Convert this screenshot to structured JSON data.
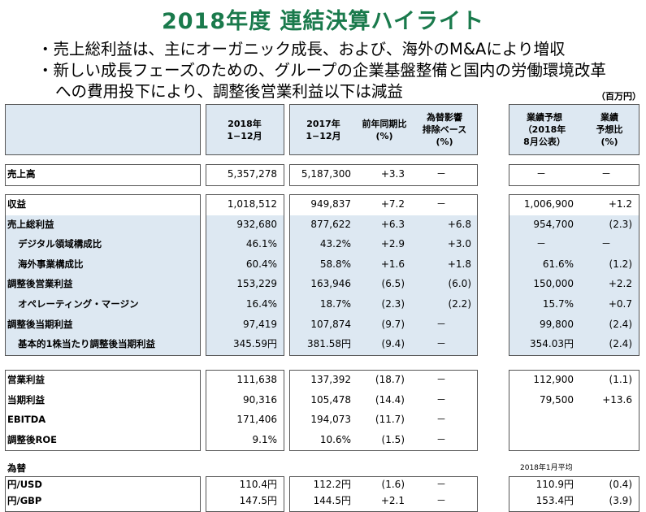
{
  "title": "2018年度 連結決算ハイライト",
  "bullets": [
    "・売上総利益は、主にオーガニック成長、および、海外のM&Aにより増収",
    "・新しい成長フェーズのための、グループの企業基盤整備と国内の労働環境改革",
    "への費用投下により、調整後営業利益以下は減益"
  ],
  "unit": "（百万円）",
  "headers": {
    "y2018": [
      "2018年",
      "1−12月"
    ],
    "y2017": [
      "2017年",
      "1−12月"
    ],
    "yoy": [
      "前年同期比",
      "(%)"
    ],
    "fx": [
      "為替影響",
      "排除ベース",
      "(%)"
    ],
    "forecast": [
      "業績予想",
      "（2018年",
      "8月公表）"
    ],
    "ratio": [
      "業績",
      "予想比",
      "(%)"
    ]
  },
  "groups": [
    {
      "rows": [
        {
          "label": "売上高",
          "indent": false,
          "v2018": "5,357,278",
          "v2017": "5,187,300",
          "yoy": "+3.3",
          "fx": "－",
          "fc": "－",
          "ratio": "－"
        }
      ]
    },
    {
      "rows": [
        {
          "label": "収益",
          "indent": false,
          "v2018": "1,018,512",
          "v2017": "949,837",
          "yoy": "+7.2",
          "fx": "－",
          "fc": "1,006,900",
          "ratio": "+1.2"
        },
        {
          "label": "売上総利益",
          "indent": false,
          "v2018": "932,680",
          "v2017": "877,622",
          "yoy": "+6.3",
          "fx": "+6.8",
          "fc": "954,700",
          "ratio": "(2.3)"
        },
        {
          "label": "デジタル領域構成比",
          "indent": true,
          "v2018": "46.1%",
          "v2017": "43.2%",
          "yoy": "+2.9",
          "fx": "+3.0",
          "fc": "－",
          "ratio": "－"
        },
        {
          "label": "海外事業構成比",
          "indent": true,
          "v2018": "60.4%",
          "v2017": "58.8%",
          "yoy": "+1.6",
          "fx": "+1.8",
          "fc": "61.6%",
          "ratio": "(1.2)"
        },
        {
          "label": "調整後営業利益",
          "indent": false,
          "v2018": "153,229",
          "v2017": "163,946",
          "yoy": "(6.5)",
          "fx": "(6.0)",
          "fc": "150,000",
          "ratio": "+2.2"
        },
        {
          "label": "オペレーティング・マージン",
          "indent": true,
          "v2018": "16.4%",
          "v2017": "18.7%",
          "yoy": "(2.3)",
          "fx": "(2.2)",
          "fc": "15.7%",
          "ratio": "+0.7"
        },
        {
          "label": "調整後当期利益",
          "indent": false,
          "v2018": "97,419",
          "v2017": "107,874",
          "yoy": "(9.7)",
          "fx": "－",
          "fc": "99,800",
          "ratio": "(2.4)"
        },
        {
          "label": "基本的1株当たり調整後当期利益",
          "indent": true,
          "v2018": "345.59円",
          "v2017": "381.58円",
          "yoy": "(9.4)",
          "fx": "－",
          "fc": "354.03円",
          "ratio": "(2.4)"
        }
      ]
    },
    {
      "rows": [
        {
          "label": "営業利益",
          "indent": false,
          "v2018": "111,638",
          "v2017": "137,392",
          "yoy": "(18.7)",
          "fx": "－",
          "fc": "112,900",
          "ratio": "(1.1)"
        },
        {
          "label": "当期利益",
          "indent": false,
          "v2018": "90,316",
          "v2017": "105,478",
          "yoy": "(14.4)",
          "fx": "－",
          "fc": "79,500",
          "ratio": "+13.6"
        },
        {
          "label": "EBITDA",
          "indent": false,
          "v2018": "171,406",
          "v2017": "194,073",
          "yoy": "(11.7)",
          "fx": "－",
          "fc": "",
          "ratio": ""
        },
        {
          "label": "調整後ROE",
          "indent": false,
          "v2018": "9.1%",
          "v2017": "10.6%",
          "yoy": "(1.5)",
          "fx": "－",
          "fc": "",
          "ratio": ""
        }
      ]
    }
  ],
  "fx_section": {
    "label": "為替",
    "avg_note": "2018年1月平均",
    "rows": [
      {
        "label": "円/USD",
        "v2018": "110.4円",
        "v2017": "112.2円",
        "yoy": "(1.6)",
        "fx": "－",
        "fc": "110.9円",
        "ratio": "(0.4)"
      },
      {
        "label": "円/GBP",
        "v2018": "147.5円",
        "v2017": "144.5円",
        "yoy": "+2.1",
        "fx": "－",
        "fc": "153.4円",
        "ratio": "(3.9)"
      }
    ]
  }
}
